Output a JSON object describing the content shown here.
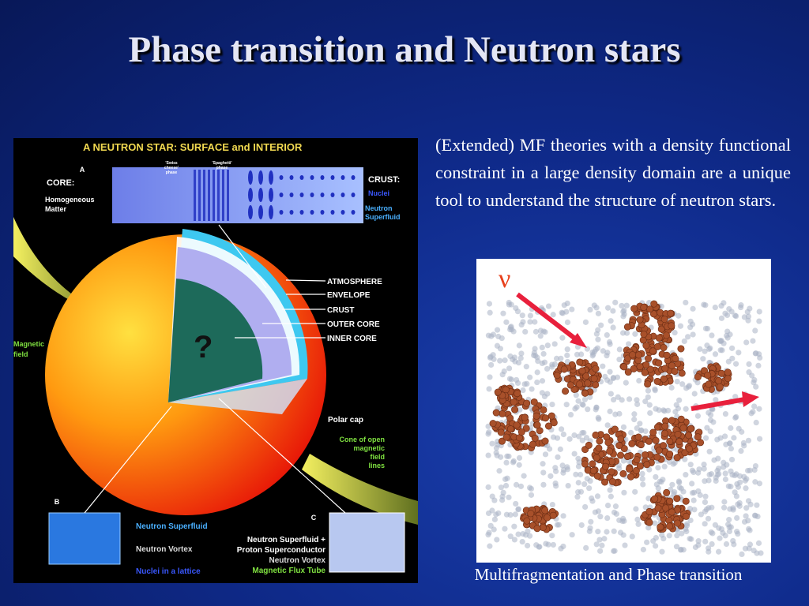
{
  "title": "Phase transition and Neutron stars",
  "body": "(Extended) MF theories with a density functional constraint in a large density domain are a unique tool to understand the structure of neutron stars.",
  "left_figure": {
    "heading": "A NEUTRON STAR: SURFACE and INTERIOR",
    "labels": {
      "a": "A",
      "core": "CORE:",
      "homogeneous": [
        "Homogeneous",
        "Matter"
      ],
      "swiss": [
        "'Swiss",
        "cheese'",
        "phase"
      ],
      "spaghetti": [
        "'Spaghetti'",
        "phase"
      ],
      "crust_head": "CRUST:",
      "nuclei": "Nuclei",
      "neutron_superfluid_top": [
        "Neutron",
        "Superfluid"
      ],
      "atmosphere": "ATMOSPHERE",
      "envelope": "ENVELOPE",
      "crust": "CRUST",
      "outer_core": "OUTER CORE",
      "inner_core": "INNER CORE",
      "question": "?",
      "magnetic": [
        "Magnetic",
        "field"
      ],
      "polar_cap": "Polar cap",
      "cone": [
        "Cone of open",
        "magnetic",
        "field",
        "lines"
      ],
      "b": "B",
      "b_superfluid": "Neutron Superfluid",
      "b_vortex": "Neutron Vortex",
      "b_lattice": "Nuclei in a lattice",
      "c": "C",
      "c_lines": [
        "Neutron Superfluid +",
        "Proton Superconductor",
        "Neutron Vortex",
        "Magnetic Flux Tube"
      ]
    }
  },
  "right_figure": {
    "symbol": "ν",
    "caption": "Multifragmentation and Phase transition"
  }
}
